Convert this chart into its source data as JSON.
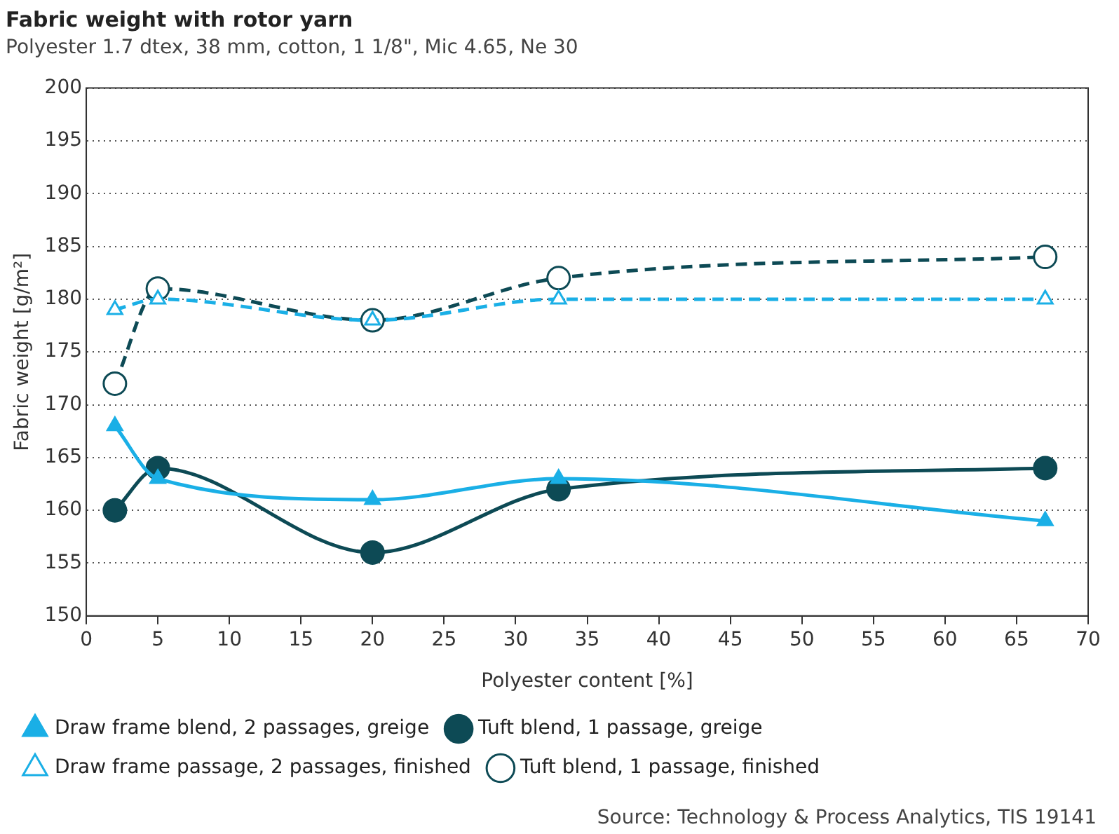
{
  "chart_data": {
    "type": "line",
    "title": "Fabric weight with rotor yarn",
    "subtitle": "Polyester 1.7 dtex, 38 mm, cotton, 1 1/8\", Mic 4.65, Ne 30",
    "xlabel": "Polyester content [%]",
    "ylabel": "Fabric weight [g/m²]",
    "x": [
      2,
      5,
      20,
      33,
      67
    ],
    "series": [
      {
        "name": "Draw frame blend, 2 passages, greige",
        "color": "#1aafe6",
        "values": [
          168,
          163,
          161,
          163,
          159
        ],
        "marker": "triangle",
        "line_style": "solid"
      },
      {
        "name": "Tuft blend, 1 passage, greige",
        "color": "#0d4a55",
        "values": [
          160,
          164,
          156,
          162,
          164
        ],
        "marker": "circle",
        "line_style": "solid"
      },
      {
        "name": "Draw frame passage, 2 passages, finished",
        "color": "#1aafe6",
        "values": [
          179,
          180,
          178,
          180,
          180
        ],
        "marker": "triangle",
        "line_style": "dashed"
      },
      {
        "name": "Tuft blend, 1 passage, finished",
        "color": "#0d4a55",
        "values": [
          172,
          181,
          178,
          182,
          184
        ],
        "marker": "circle",
        "line_style": "dashed"
      }
    ],
    "xlim": [
      0,
      70
    ],
    "xticks": [
      0,
      5,
      10,
      15,
      20,
      25,
      30,
      35,
      40,
      45,
      50,
      55,
      60,
      65,
      70
    ],
    "ylim": [
      150,
      200
    ],
    "yticks": [
      150,
      155,
      160,
      165,
      170,
      175,
      180,
      185,
      190,
      195,
      200
    ],
    "grid": "y",
    "legend": "bottom",
    "annotations": [
      "Source: Technology & Process Analytics, TIS 19141"
    ]
  }
}
